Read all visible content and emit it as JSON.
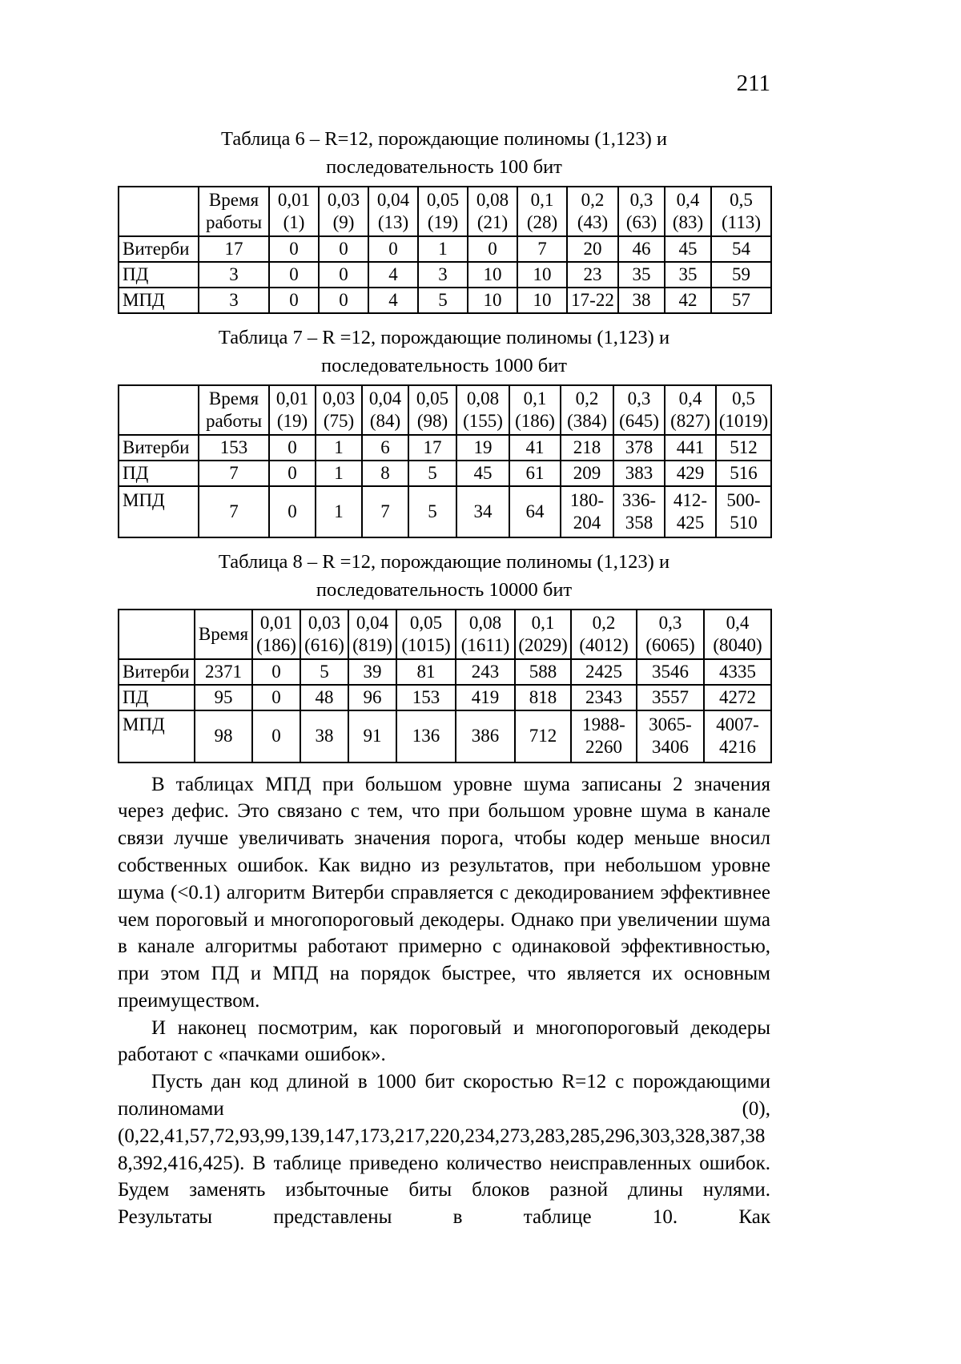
{
  "page_number": "211",
  "tables": [
    {
      "title": "Таблица 6 – R=12, порождающие полиномы (1,123) и\nпоследовательность 100 бит",
      "columns": [
        "",
        "Время\nработы",
        "0,01\n(1)",
        "0,03\n(9)",
        "0,04\n(13)",
        "0,05\n(19)",
        "0,08\n(21)",
        "0,1\n(28)",
        "0,2\n(43)",
        "0,3\n(63)",
        "0,4\n(83)",
        "0,5\n(113)"
      ],
      "rows": [
        {
          "label": "Витерби",
          "values": [
            "17",
            "0",
            "0",
            "0",
            "1",
            "0",
            "7",
            "20",
            "46",
            "45",
            "54"
          ]
        },
        {
          "label": "ПД",
          "values": [
            "3",
            "0",
            "0",
            "4",
            "3",
            "10",
            "10",
            "23",
            "35",
            "35",
            "59"
          ]
        },
        {
          "label": "МПД",
          "values": [
            "3",
            "0",
            "0",
            "4",
            "5",
            "10",
            "10",
            "17-22",
            "38",
            "42",
            "57"
          ]
        }
      ]
    },
    {
      "title": "Таблица 7 – R =12, порождающие полиномы (1,123) и\nпоследовательность 1000 бит",
      "columns": [
        "",
        "Время\nработы",
        "0,01\n(19)",
        "0,03\n(75)",
        "0,04\n(84)",
        "0,05\n(98)",
        "0,08\n(155)",
        "0,1\n(186)",
        "0,2\n(384)",
        "0,3\n(645)",
        "0,4\n(827)",
        "0,5\n(1019)"
      ],
      "rows": [
        {
          "label": "Витерби",
          "values": [
            "153",
            "0",
            "1",
            "6",
            "17",
            "19",
            "41",
            "218",
            "378",
            "441",
            "512"
          ]
        },
        {
          "label": "ПД",
          "values": [
            "7",
            "0",
            "1",
            "8",
            "5",
            "45",
            "61",
            "209",
            "383",
            "429",
            "516"
          ]
        },
        {
          "label": "МПД",
          "values": [
            "7",
            "0",
            "1",
            "7",
            "5",
            "34",
            "64",
            "180-\n204",
            "336-\n358",
            "412-\n425",
            "500-\n510"
          ]
        }
      ]
    },
    {
      "title": "Таблица 8 – R =12, порождающие полиномы (1,123) и\nпоследовательность 10000 бит",
      "columns": [
        "",
        "Время",
        "0,01\n(186)",
        "0,03\n(616)",
        "0,04\n(819)",
        "0,05\n(1015)",
        "0,08\n(1611)",
        "0,1\n(2029)",
        "0,2\n(4012)",
        "0,3\n(6065)",
        "0,4\n(8040)"
      ],
      "rows": [
        {
          "label": "Витерби",
          "values": [
            "2371",
            "0",
            "5",
            "39",
            "81",
            "243",
            "588",
            "2425",
            "3546",
            "4335"
          ]
        },
        {
          "label": "ПД",
          "values": [
            "95",
            "0",
            "48",
            "96",
            "153",
            "419",
            "818",
            "2343",
            "3557",
            "4272"
          ]
        },
        {
          "label": "МПД",
          "values": [
            "98",
            "0",
            "38",
            "91",
            "136",
            "386",
            "712",
            "1988-\n2260",
            "3065-\n3406",
            "4007-\n4216"
          ]
        }
      ]
    }
  ],
  "paragraphs": [
    "В таблицах МПД при большом уровне шума записаны 2 значения через дефис. Это связано с тем, что при большом уровне шума в канале связи лучше увеличивать значения порога, чтобы кодер меньше вносил собственных ошибок. Как видно из результатов, при небольшом уровне шума (<0.1) алгоритм Витерби справляется с декодированием эффективнее чем пороговый и многопороговый декодеры. Однако при увеличении шума в канале алгоритмы работают примерно с одинаковой эффективностью, при этом ПД и МПД на порядок быстрее, что является их основным преимуществом.",
    "И наконец посмотрим, как пороговый и многопороговый декодеры работают с «пачками ошибок».",
    "Пусть дан код длиной в 1000 бит скоростью R=12 с порождающими полиномами (0),(0,22,41,57,72,93,99,139,147,173,217,220,234,273,283,285,296,303,328,387,388,392,416,425). В таблице приведено количество неисправленных ошибок. Будем заменять избыточные биты блоков разной длины нулями. Результаты представлены в таблице 10. Как"
  ]
}
